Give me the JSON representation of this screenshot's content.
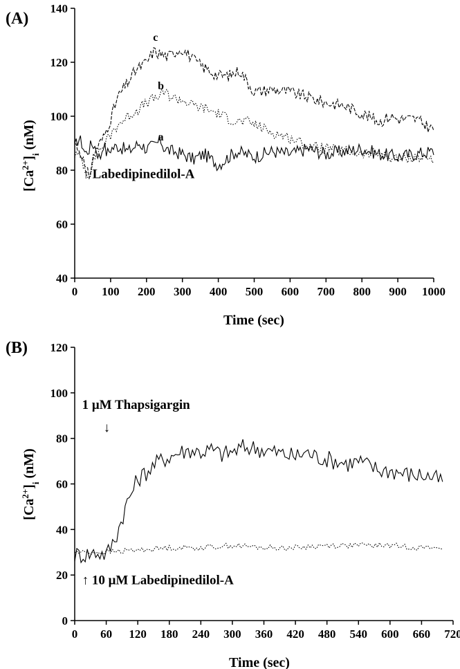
{
  "chart_data": [
    {
      "type": "line",
      "panel_label": "(A)",
      "xlabel": "Time (sec)",
      "ylabel": "[Ca2+]i (nM)",
      "xlim": [
        0,
        1000
      ],
      "ylim": [
        40,
        140
      ],
      "x_ticks": [
        "0",
        "100",
        "200",
        "300",
        "400",
        "500",
        "600",
        "700",
        "800",
        "900",
        "1000"
      ],
      "y_ticks": [
        "40",
        "60",
        "80",
        "100",
        "120",
        "140"
      ],
      "grid": false,
      "annotations": [
        {
          "text": "↑ Labedipinedilol-A",
          "x": 70,
          "y": 77
        }
      ],
      "series": [
        {
          "name": "a",
          "style": "solid",
          "x": [
            0,
            10,
            20,
            30,
            40,
            50,
            60,
            70,
            80,
            90,
            100,
            120,
            150,
            180,
            200,
            220,
            240,
            250,
            270,
            300,
            330,
            360,
            400,
            420,
            450,
            500,
            550,
            600,
            650,
            700,
            750,
            800,
            850,
            900,
            950,
            1000
          ],
          "y": [
            88,
            92,
            90,
            86,
            88,
            90,
            88,
            84,
            90,
            86,
            88,
            89,
            87,
            90,
            88,
            89,
            91,
            88,
            87,
            86,
            84,
            86,
            82,
            84,
            87,
            85,
            87,
            86,
            88,
            86,
            87,
            88,
            86,
            85,
            86,
            87
          ]
        },
        {
          "name": "b",
          "style": "dotted",
          "x": [
            0,
            20,
            30,
            40,
            50,
            60,
            80,
            100,
            120,
            150,
            180,
            200,
            230,
            250,
            270,
            300,
            330,
            360,
            400,
            430,
            450,
            480,
            500,
            550,
            600,
            650,
            700,
            750,
            800,
            850,
            900,
            950,
            1000
          ],
          "y": [
            86,
            84,
            80,
            78,
            82,
            86,
            89,
            93,
            97,
            100,
            103,
            105,
            107,
            109,
            107,
            106,
            104,
            103,
            101,
            99,
            98,
            98,
            97,
            94,
            92,
            89,
            88,
            87,
            86,
            86,
            84,
            85,
            84
          ]
        },
        {
          "name": "c",
          "style": "dashed",
          "x": [
            0,
            20,
            30,
            40,
            50,
            60,
            80,
            100,
            120,
            150,
            170,
            200,
            220,
            240,
            260,
            280,
            300,
            330,
            360,
            400,
            430,
            460,
            480,
            500,
            550,
            600,
            650,
            700,
            750,
            800,
            850,
            880,
            900,
            950,
            1000
          ],
          "y": [
            90,
            86,
            80,
            78,
            84,
            88,
            92,
            99,
            107,
            113,
            117,
            120,
            124,
            123,
            122,
            124,
            125,
            121,
            118,
            115,
            115,
            117,
            113,
            109,
            110,
            109,
            107,
            105,
            104,
            101,
            98,
            100,
            99,
            99,
            95
          ]
        }
      ],
      "series_labels": [
        {
          "text": "a",
          "x": 240,
          "y": 91
        },
        {
          "text": "b",
          "x": 240,
          "y": 110
        },
        {
          "text": "c",
          "x": 225,
          "y": 128
        }
      ]
    },
    {
      "type": "line",
      "panel_label": "(B)",
      "xlabel": "Time (sec)",
      "ylabel": "[Ca2+]i (nM)",
      "xlim": [
        0,
        720
      ],
      "ylim": [
        0,
        120
      ],
      "x_ticks": [
        "0",
        "60",
        "120",
        "180",
        "240",
        "300",
        "360",
        "420",
        "480",
        "540",
        "600",
        "660",
        "720"
      ],
      "y_ticks": [
        "0",
        "20",
        "40",
        "60",
        "80",
        "100",
        "120"
      ],
      "grid": false,
      "annotations": [
        {
          "text": "1 μM Thapsigargin",
          "x": 60,
          "y": 93
        },
        {
          "text": "↓",
          "x": 60,
          "y": 83
        },
        {
          "text": "↑ 10 μM Labedipinedilol-A",
          "x": 60,
          "y": 16
        }
      ],
      "series": [
        {
          "name": "thapsigargin",
          "style": "solid",
          "x": [
            0,
            20,
            40,
            60,
            70,
            80,
            90,
            100,
            110,
            120,
            140,
            160,
            180,
            200,
            220,
            240,
            260,
            280,
            300,
            320,
            340,
            360,
            380,
            400,
            420,
            440,
            460,
            480,
            500,
            520,
            540,
            560,
            580,
            600,
            620,
            640,
            660,
            680,
            700
          ],
          "y": [
            29,
            29,
            30,
            29,
            33,
            38,
            45,
            52,
            57,
            62,
            66,
            70,
            72,
            74,
            75,
            74,
            75,
            73,
            74,
            76,
            76,
            75,
            74,
            73,
            72,
            74,
            72,
            71,
            70,
            69,
            70,
            68,
            66,
            66,
            65,
            64,
            64,
            63,
            61
          ]
        },
        {
          "name": "labedipinedilol",
          "style": "dotted",
          "x": [
            0,
            60,
            120,
            180,
            240,
            300,
            360,
            420,
            480,
            540,
            600,
            660,
            700
          ],
          "y": [
            30,
            30,
            31,
            32,
            32,
            33,
            32,
            32,
            33,
            33,
            33,
            32,
            32
          ]
        }
      ]
    }
  ]
}
